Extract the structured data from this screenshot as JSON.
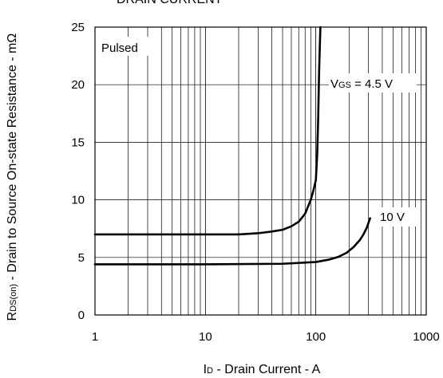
{
  "chart_data": {
    "type": "line",
    "title": "DRAIN CURRENT",
    "xlabel": {
      "symbol": "I",
      "sub": "D",
      "rest": " - Drain Current - A"
    },
    "ylabel": {
      "symbol": "R",
      "sub": "DS(on)",
      "rest": " - Drain to Source On-state Resistance - mΩ"
    },
    "x_scale": "log",
    "xlim": [
      1,
      1000
    ],
    "ylim": [
      0,
      25
    ],
    "x_ticks": [
      1,
      10,
      100,
      1000
    ],
    "x_tick_labels": [
      "1",
      "10",
      "100",
      "1000"
    ],
    "y_ticks": [
      0,
      5,
      10,
      15,
      20,
      25
    ],
    "y_tick_labels": [
      "0",
      "5",
      "10",
      "15",
      "20",
      "25"
    ],
    "grid": true,
    "annotations": {
      "pulsed": "Pulsed",
      "vgs_symbol": "V",
      "vgs_sub": "GS",
      "vgs_value": " = 4.5 V",
      "ten_v": "10 V"
    },
    "series": [
      {
        "x": [
          1,
          10,
          20,
          30,
          40,
          50,
          60,
          70,
          80,
          90,
          95,
          100,
          103,
          105,
          107,
          110
        ],
        "y": [
          7.0,
          7.0,
          7.0,
          7.1,
          7.25,
          7.4,
          7.7,
          8.1,
          8.8,
          10.0,
          10.8,
          11.7,
          14.0,
          17.0,
          21.0,
          25.0
        ]
      },
      {
        "x": [
          1,
          10,
          50,
          100,
          130,
          160,
          190,
          220,
          250,
          270,
          290,
          310
        ],
        "y": [
          4.4,
          4.4,
          4.45,
          4.6,
          4.8,
          5.05,
          5.4,
          5.9,
          6.5,
          7.0,
          7.6,
          8.4
        ]
      }
    ]
  }
}
